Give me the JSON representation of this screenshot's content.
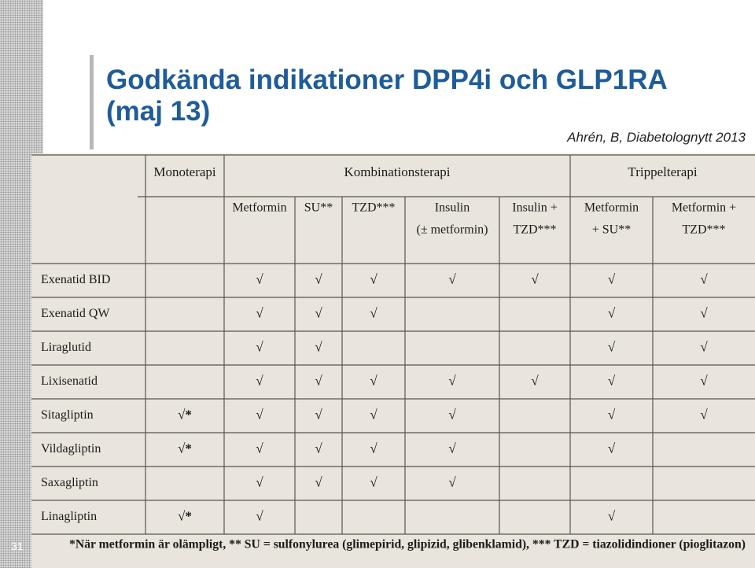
{
  "slide": {
    "title_lines": [
      "Godkända indikationer DPP4i och GLP1RA",
      "(maj 13)"
    ],
    "citation": "Ahrén, B, Diabetolognytt 2013",
    "slide_number": "31"
  },
  "table": {
    "groups": [
      "Monoterapi",
      "Kombinationsterapi",
      "Trippelterapi"
    ],
    "subheaders": [
      [
        "Metformin"
      ],
      [
        "SU**"
      ],
      [
        "TZD***"
      ],
      [
        "Insulin",
        "(± metformin)"
      ],
      [
        "Insulin +",
        "TZD***"
      ],
      [
        "Metformin",
        "+ SU**"
      ],
      [
        "Metformin +",
        "TZD***"
      ]
    ],
    "rows": [
      {
        "label": "Exenatid BID",
        "cells": [
          null,
          "√",
          "√",
          "√",
          "√",
          "√",
          "√",
          "√"
        ]
      },
      {
        "label": "Exenatid QW",
        "cells": [
          null,
          "√",
          "√",
          "√",
          null,
          null,
          "√",
          "√"
        ]
      },
      {
        "label": "Liraglutid",
        "cells": [
          null,
          "√",
          "√",
          null,
          null,
          null,
          "√",
          "√"
        ]
      },
      {
        "label": "Lixisenatid",
        "cells": [
          null,
          "√",
          "√",
          "√",
          "√",
          "√",
          "√",
          "√"
        ]
      },
      {
        "label": "Sitagliptin",
        "cells": [
          "√*",
          "√",
          "√",
          "√",
          "√",
          null,
          "√",
          "√"
        ]
      },
      {
        "label": "Vildagliptin",
        "cells": [
          "√*",
          "√",
          "√",
          "√",
          "√",
          null,
          "√",
          null
        ]
      },
      {
        "label": "Saxagliptin",
        "cells": [
          null,
          "√",
          "√",
          "√",
          "√",
          null,
          null,
          null
        ]
      },
      {
        "label": "Linagliptin",
        "cells": [
          "√*",
          "√",
          null,
          null,
          null,
          null,
          "√",
          null
        ]
      }
    ],
    "footnote": "*När metformin är olämpligt, ** SU = sulfonylurea (glimepirid, glipizid, glibenklamid), *** TZD = tiazolidindioner (pioglitazon)"
  }
}
